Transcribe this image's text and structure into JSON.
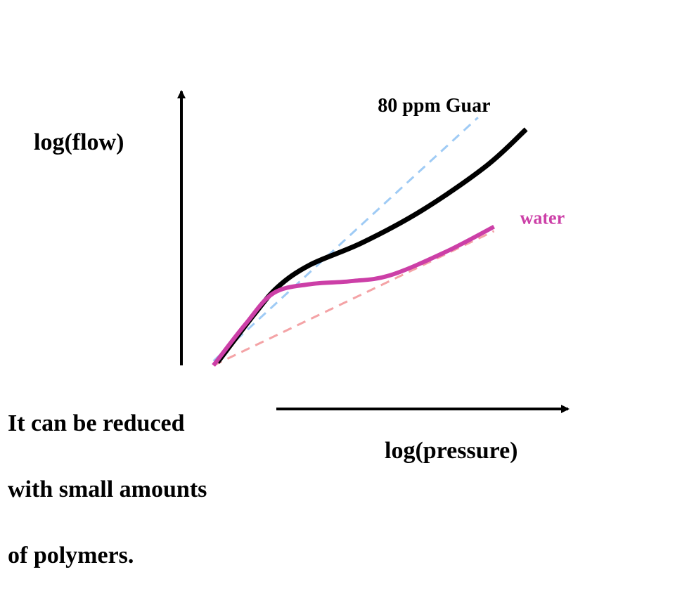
{
  "colors": {
    "background": "#ffffff",
    "axis": "#000000",
    "guar_curve": "#000000",
    "guar_asymptote": "#9fcbf5",
    "water_curve": "#cc3fa7",
    "water_asymptote": "#f4a3a6",
    "text": "#000000",
    "water_label": "#cc3fa7"
  },
  "chart_data": {
    "type": "line",
    "title": "",
    "xlabel": "log(pressure)",
    "ylabel": "log(flow)",
    "xlim": [
      0,
      10
    ],
    "ylim": [
      0,
      10
    ],
    "grid": false,
    "legend": "none",
    "tick_labels": [],
    "series": [
      {
        "name": "80 ppm Guar",
        "style": "solid",
        "color": "#000000",
        "points": [
          [
            0.9,
            0.1
          ],
          [
            1.8,
            1.7
          ],
          [
            2.4,
            2.65
          ],
          [
            3.2,
            3.4
          ],
          [
            4.5,
            4.15
          ],
          [
            6.0,
            5.25
          ],
          [
            7.6,
            6.75
          ],
          [
            8.6,
            8.0
          ]
        ]
      },
      {
        "name": "water",
        "style": "solid",
        "color": "#cc3fa7",
        "points": [
          [
            0.8,
            0.0
          ],
          [
            1.6,
            1.4
          ],
          [
            2.3,
            2.45
          ],
          [
            3.2,
            2.75
          ],
          [
            4.2,
            2.85
          ],
          [
            5.2,
            3.05
          ],
          [
            6.6,
            3.85
          ],
          [
            7.8,
            4.7
          ]
        ]
      },
      {
        "style": "dashed",
        "color": "#9fcbf5",
        "points": [
          [
            0.8,
            0.15
          ],
          [
            7.4,
            8.4
          ]
        ]
      },
      {
        "style": "dashed",
        "color": "#f4a3a6",
        "points": [
          [
            0.8,
            0.0
          ],
          [
            7.8,
            4.55
          ]
        ]
      }
    ],
    "annotations": [
      {
        "text": "80 ppm Guar",
        "at": [
          4.9,
          8.6
        ],
        "color": "#000000"
      },
      {
        "text": "water",
        "at": [
          8.45,
          4.8
        ],
        "color": "#cc3fa7"
      }
    ]
  },
  "caption": {
    "lines": [
      "It can be reduced",
      "with small amounts",
      "of polymers."
    ]
  }
}
